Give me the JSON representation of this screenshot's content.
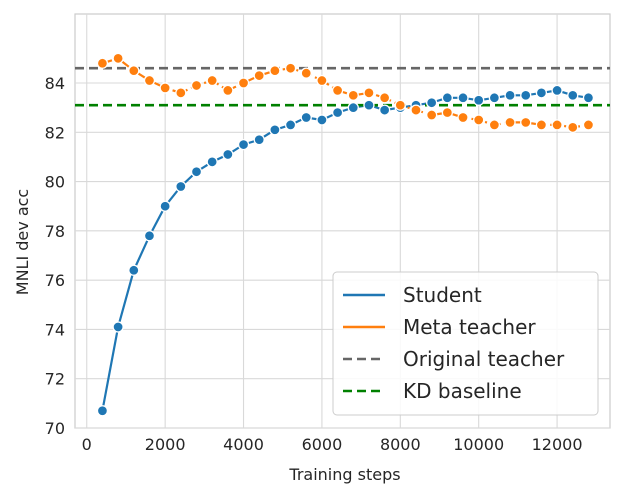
{
  "chart_data": {
    "type": "line",
    "xlabel": "Training steps",
    "ylabel": "MNLI dev acc",
    "xlim": [
      -300,
      13350
    ],
    "ylim": [
      70,
      86.8
    ],
    "xticks": [
      0,
      2000,
      4000,
      6000,
      8000,
      10000,
      12000
    ],
    "yticks": [
      70,
      72,
      74,
      76,
      78,
      80,
      82,
      84
    ],
    "grid": true,
    "legend_position": "bottom-right",
    "series": [
      {
        "name": "Student",
        "color": "#1f77b4",
        "style": "solid-markers",
        "x": [
          400,
          800,
          1200,
          1600,
          2000,
          2400,
          2800,
          3200,
          3600,
          4000,
          4400,
          4800,
          5200,
          5600,
          6000,
          6400,
          6800,
          7200,
          7600,
          8000,
          8400,
          8800,
          9200,
          9600,
          10000,
          10400,
          10800,
          11200,
          11600,
          12000,
          12400,
          12800
        ],
        "y": [
          70.7,
          74.1,
          76.4,
          77.8,
          79.0,
          79.8,
          80.4,
          80.8,
          81.1,
          81.5,
          81.7,
          82.1,
          82.3,
          82.6,
          82.5,
          82.8,
          83.0,
          83.1,
          82.9,
          83.0,
          83.1,
          83.2,
          83.4,
          83.4,
          83.3,
          83.4,
          83.5,
          83.5,
          83.6,
          83.7,
          83.5,
          83.4
        ]
      },
      {
        "name": "Meta teacher",
        "color": "#ff7f0e",
        "style": "dashdot-markers",
        "x": [
          400,
          800,
          1200,
          1600,
          2000,
          2400,
          2800,
          3200,
          3600,
          4000,
          4400,
          4800,
          5200,
          5600,
          6000,
          6400,
          6800,
          7200,
          7600,
          8000,
          8400,
          8800,
          9200,
          9600,
          10000,
          10400,
          10800,
          11200,
          11600,
          12000,
          12400,
          12800
        ],
        "y": [
          84.8,
          85.0,
          84.5,
          84.1,
          83.8,
          83.6,
          83.9,
          84.1,
          83.7,
          84.0,
          84.3,
          84.5,
          84.6,
          84.4,
          84.1,
          83.7,
          83.5,
          83.6,
          83.4,
          83.1,
          82.9,
          82.7,
          82.8,
          82.6,
          82.5,
          82.3,
          82.4,
          82.4,
          82.3,
          82.3,
          82.2,
          82.3
        ]
      },
      {
        "name": "Original teacher",
        "color": "#666666",
        "style": "dashed",
        "y_const": 84.6
      },
      {
        "name": "KD baseline",
        "color": "#008000",
        "style": "dashed",
        "y_const": 83.1
      }
    ]
  }
}
